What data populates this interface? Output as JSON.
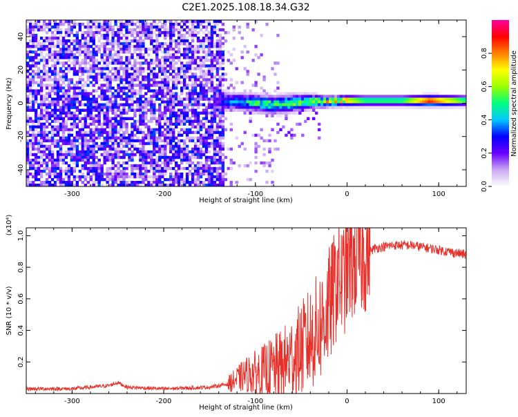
{
  "title": "C2E1.2025.108.18.34.G32",
  "chart_data": [
    {
      "type": "heatmap",
      "xlabel": "Height of straight line (km)",
      "ylabel": "Frequency (Hz)",
      "xlim": [
        -350,
        130
      ],
      "ylim": [
        -50,
        50
      ],
      "x_ticks": [
        -300,
        -200,
        -100,
        0,
        100
      ],
      "x_tick_labels": [
        "-300",
        "-200",
        "-100",
        "0",
        "100"
      ],
      "y_ticks": [
        -40,
        -20,
        0,
        20,
        40
      ],
      "y_tick_labels": [
        "-40",
        "-20",
        "0",
        "20",
        "40"
      ],
      "colorbar": {
        "label": "Normalized spectral amplitude",
        "range": [
          0,
          1
        ],
        "ticks": [
          0.0,
          0.2,
          0.4,
          0.6,
          0.8
        ],
        "tick_labels": [
          "0.0",
          "0.2",
          "0.4",
          "0.6",
          "0.8"
        ],
        "colors": [
          "#ffffff",
          "#c9a8f2",
          "#6a00ff",
          "#0000ff",
          "#00c8ff",
          "#00ff7f",
          "#99ff00",
          "#ffff00",
          "#ff8000",
          "#ff0000",
          "#ff00a0"
        ]
      },
      "noise_region": {
        "x_start": -350,
        "x_end": -135,
        "level": "low"
      },
      "signal_band": [
        {
          "x": -140,
          "freq_center": 1,
          "freq_halfwidth": 6,
          "amplitude": 0.25
        },
        {
          "x": -120,
          "freq_center": 1,
          "freq_halfwidth": 5,
          "amplitude": 0.4
        },
        {
          "x": -100,
          "freq_center": 0,
          "freq_halfwidth": 5,
          "amplitude": 0.5
        },
        {
          "x": -80,
          "freq_center": -1,
          "freq_halfwidth": 5,
          "amplitude": 0.55
        },
        {
          "x": -60,
          "freq_center": 0,
          "freq_halfwidth": 5,
          "amplitude": 0.55
        },
        {
          "x": -40,
          "freq_center": 1,
          "freq_halfwidth": 4,
          "amplitude": 0.6
        },
        {
          "x": -20,
          "freq_center": 1,
          "freq_halfwidth": 3,
          "amplitude": 0.7
        },
        {
          "x": 0,
          "freq_center": 1.5,
          "freq_halfwidth": 3,
          "amplitude": 0.75
        },
        {
          "x": 20,
          "freq_center": 1.5,
          "freq_halfwidth": 3,
          "amplitude": 0.55
        },
        {
          "x": 60,
          "freq_center": 1.5,
          "freq_halfwidth": 3,
          "amplitude": 0.55
        },
        {
          "x": 90,
          "freq_center": 1.5,
          "freq_halfwidth": 3,
          "amplitude": 0.95
        },
        {
          "x": 130,
          "freq_center": 1.5,
          "freq_halfwidth": 3,
          "amplitude": 0.55
        }
      ]
    },
    {
      "type": "line",
      "xlabel": "Height of straight line (km)",
      "ylabel": "SNR (10 * v/v)",
      "y_multiplier_label": "(x10⁴)",
      "xlim": [
        -350,
        130
      ],
      "ylim": [
        0,
        1.05
      ],
      "x_ticks": [
        -300,
        -200,
        -100,
        0,
        100
      ],
      "x_tick_labels": [
        "-300",
        "-200",
        "-100",
        "0",
        "100"
      ],
      "y_ticks": [
        0.2,
        0.4,
        0.6,
        0.8,
        1.0
      ],
      "y_tick_labels": [
        "0.2",
        "0.4",
        "0.6",
        "0.8",
        "1.0"
      ],
      "series": [
        {
          "color": "#e8302a",
          "x": [
            -350,
            -300,
            -260,
            -250,
            -240,
            -200,
            -150,
            -130,
            -110,
            -90,
            -70,
            -50,
            -40,
            -30,
            -20,
            -15,
            -10,
            -5,
            0,
            10,
            20,
            30,
            50,
            70,
            90,
            110,
            130
          ],
          "y": [
            0.03,
            0.03,
            0.05,
            0.07,
            0.04,
            0.03,
            0.04,
            0.06,
            0.12,
            0.14,
            0.18,
            0.28,
            0.35,
            0.42,
            0.55,
            0.62,
            0.75,
            0.7,
            0.8,
            0.85,
            0.88,
            0.92,
            0.94,
            0.94,
            0.92,
            0.9,
            0.88
          ]
        }
      ]
    }
  ]
}
